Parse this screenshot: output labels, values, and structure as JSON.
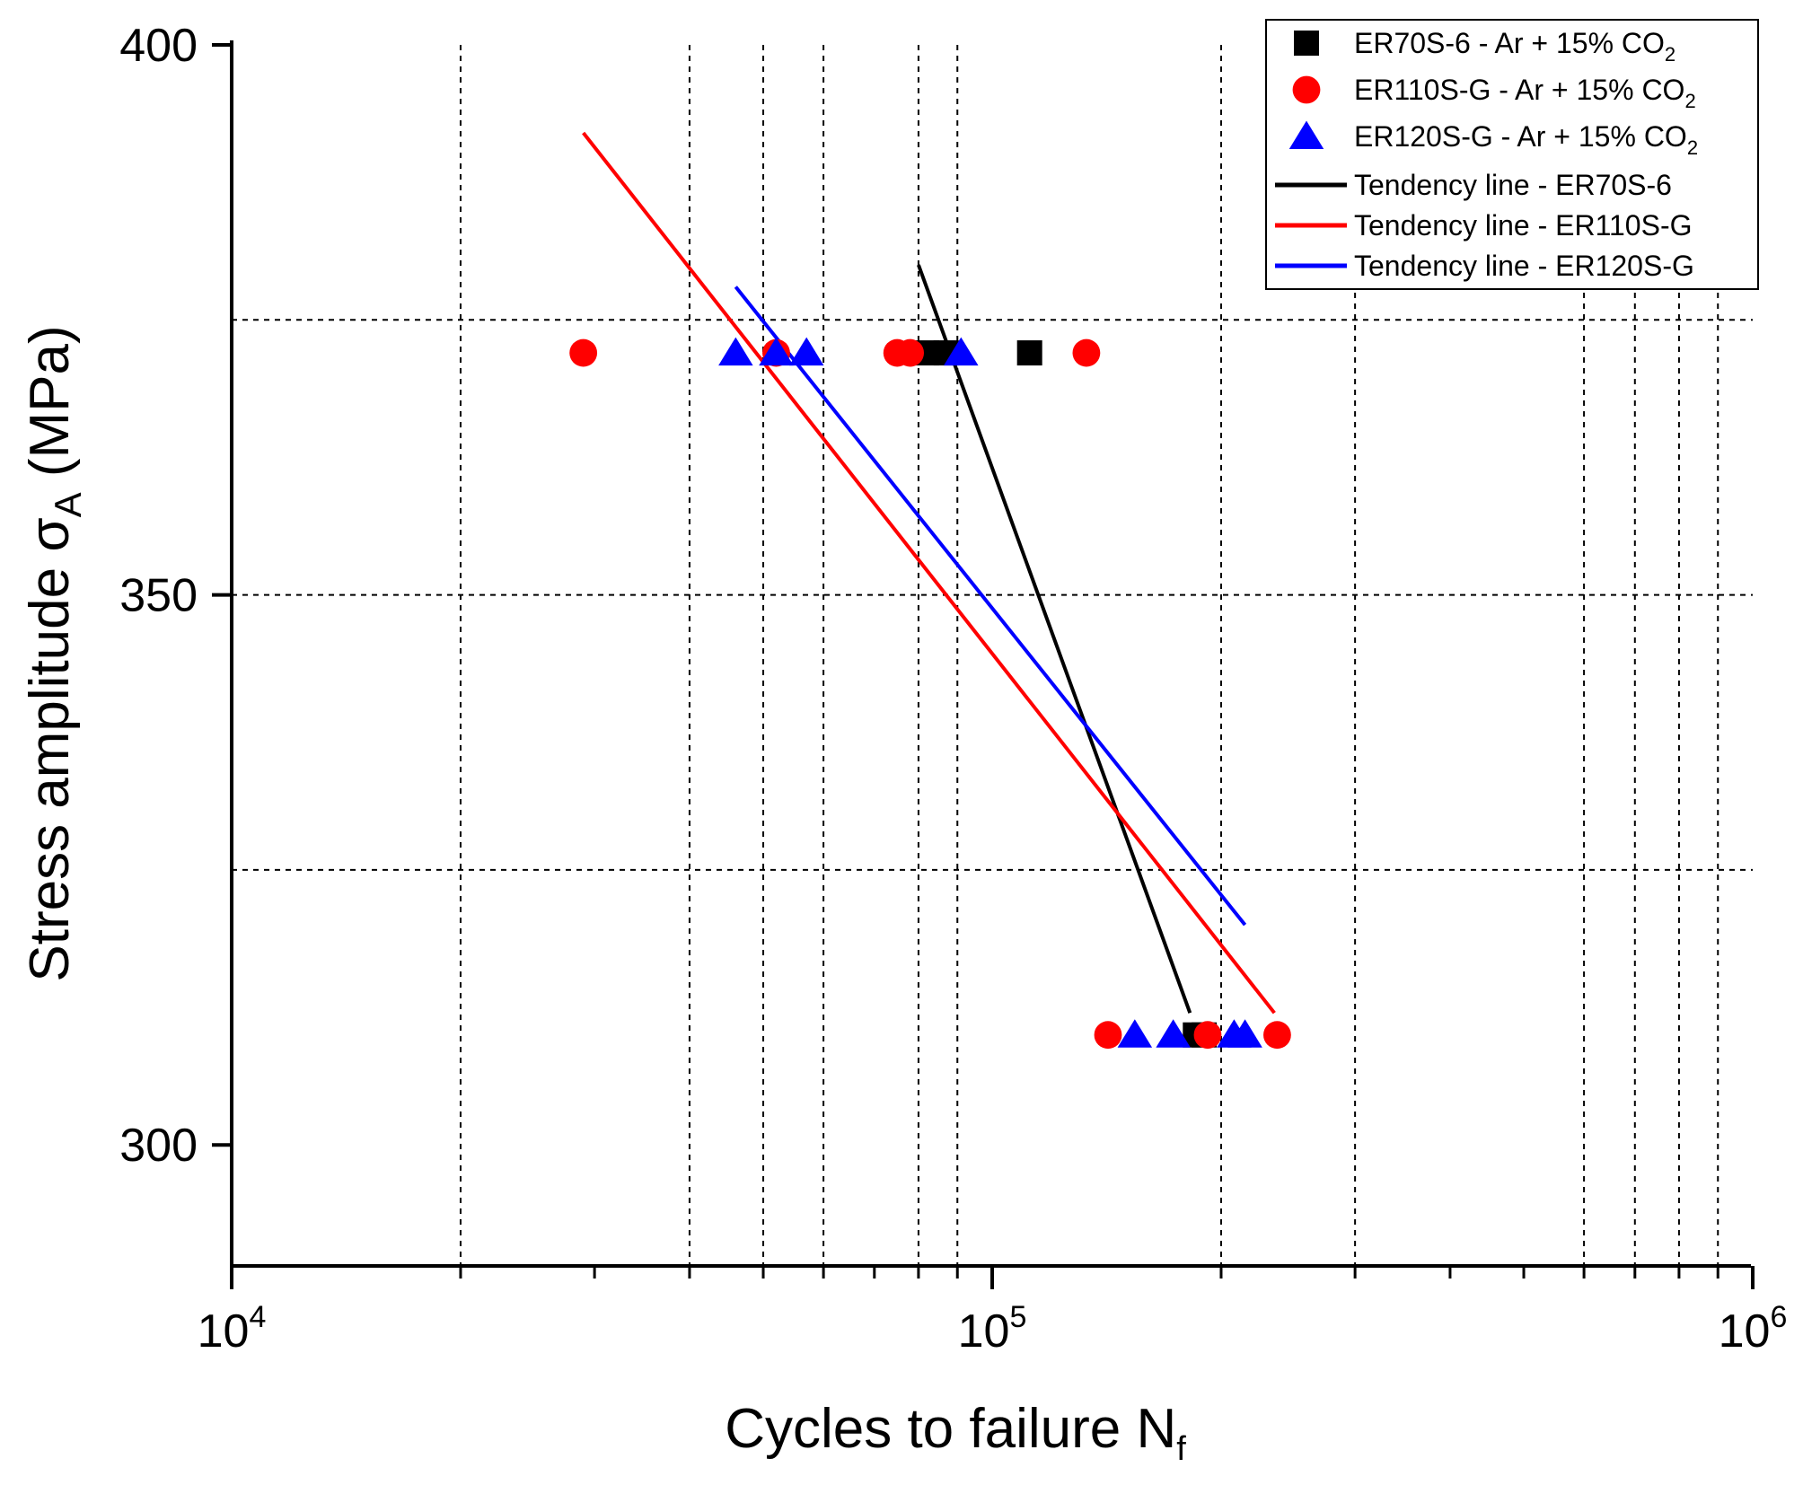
{
  "chart_data": {
    "type": "scatter",
    "title": "",
    "xlabel": "Cycles to failure N",
    "xlabel_sub": "f",
    "ylabel": "Stress amplitude σ",
    "ylabel_sub": "A",
    "ylabel_unit": " (MPa)",
    "x_scale": "log",
    "xlim": [
      10000,
      1000000
    ],
    "ylim": [
      289,
      400
    ],
    "x_ticks": [
      {
        "base": "10",
        "exp": "4",
        "value": 10000
      },
      {
        "base": "10",
        "exp": "5",
        "value": 100000
      },
      {
        "base": "10",
        "exp": "6",
        "value": 1000000
      }
    ],
    "y_ticks": [
      {
        "label": "400",
        "value": 400
      },
      {
        "label": "350",
        "value": 350
      },
      {
        "label": "300",
        "value": 300
      }
    ],
    "grid_x": [
      20000,
      40000,
      50000,
      60000,
      80000,
      90000,
      200000,
      300000,
      600000,
      700000,
      800000,
      900000
    ],
    "grid_y": [
      375,
      350,
      325
    ],
    "legend_position": "top-right",
    "series": [
      {
        "name": "ER70S-6 - Ar + 15% CO",
        "sub": "2",
        "marker": "square",
        "color": "#000000",
        "points": [
          [
            82000,
            372
          ],
          [
            87000,
            372
          ],
          [
            112000,
            372
          ],
          [
            185000,
            310
          ],
          [
            190000,
            310
          ]
        ]
      },
      {
        "name": "ER110S-G - Ar + 15% CO",
        "sub": "2",
        "marker": "circle",
        "color": "#ff0000",
        "points": [
          [
            29000,
            372
          ],
          [
            52000,
            372
          ],
          [
            75000,
            372
          ],
          [
            78000,
            372
          ],
          [
            133000,
            372
          ],
          [
            142000,
            310
          ],
          [
            192000,
            310
          ],
          [
            237000,
            310
          ]
        ]
      },
      {
        "name": "ER120S-G - Ar + 15% CO",
        "sub": "2",
        "marker": "triangle",
        "color": "#0000ff",
        "points": [
          [
            46000,
            372
          ],
          [
            52000,
            372
          ],
          [
            57000,
            372
          ],
          [
            91000,
            372
          ],
          [
            154000,
            310
          ],
          [
            173000,
            310
          ],
          [
            208000,
            310
          ],
          [
            215000,
            310
          ]
        ]
      }
    ],
    "trendlines": [
      {
        "name": "Tendency line - ER70S-6",
        "color": "#000000",
        "from": [
          80000,
          380
        ],
        "to": [
          182000,
          312
        ]
      },
      {
        "name": "Tendency line - ER110S-G",
        "color": "#ff0000",
        "from": [
          29000,
          392
        ],
        "to": [
          235000,
          312
        ]
      },
      {
        "name": "Tendency line - ER120S-G",
        "color": "#0000ff",
        "from": [
          46000,
          378
        ],
        "to": [
          215000,
          320
        ]
      }
    ]
  }
}
